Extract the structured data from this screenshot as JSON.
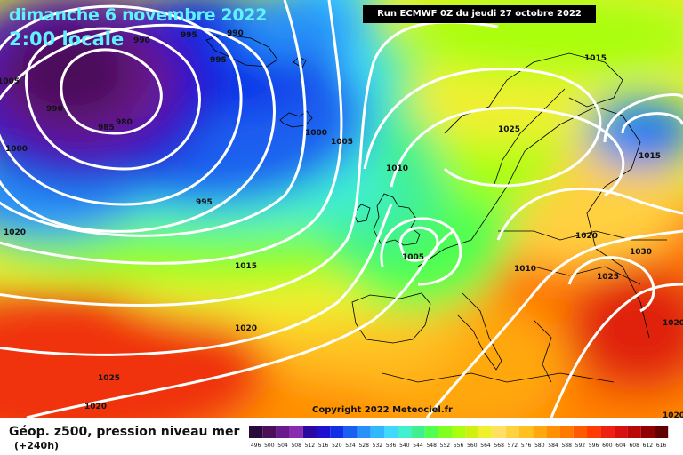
{
  "header": {
    "date_line": "dimanche 6 novembre 2022",
    "time_line": "2:00 locale",
    "run_info": "Run ECMWF 0Z du jeudi 27 octobre 2022"
  },
  "footer": {
    "copyright": "Copyright 2022 Meteociel.fr",
    "legend_title": "Géop. z500, pression niveau mer",
    "legend_subtitle": "(+240h)"
  },
  "isobar_labels": [
    "990",
    "995",
    "990",
    "995",
    "990",
    "985",
    "980",
    "1000",
    "1005",
    "1000",
    "995",
    "1020",
    "1015",
    "1010",
    "1005",
    "1015",
    "1025",
    "1015",
    "1020",
    "1010",
    "1020",
    "1025",
    "1030",
    "1020",
    "1025",
    "1020",
    "1020",
    "1005"
  ],
  "scale": {
    "values": [
      "496",
      "500",
      "504",
      "508",
      "512",
      "516",
      "520",
      "524",
      "528",
      "532",
      "536",
      "540",
      "544",
      "548",
      "552",
      "556",
      "560",
      "564",
      "568",
      "572",
      "576",
      "580",
      "584",
      "588",
      "592",
      "596",
      "600",
      "604",
      "608",
      "612",
      "616"
    ],
    "colors": [
      "#2a0a3a",
      "#4c0f5a",
      "#6a1a8a",
      "#8a2ab0",
      "#2a0aa0",
      "#2010d0",
      "#1030e8",
      "#1a60f0",
      "#2890f8",
      "#30b8ff",
      "#40d8ff",
      "#40f0d0",
      "#40f090",
      "#50ff50",
      "#80ff20",
      "#a8ff10",
      "#d0f010",
      "#f0f030",
      "#ffe060",
      "#ffd040",
      "#ffc020",
      "#ffa810",
      "#ff9000",
      "#ff7800",
      "#ff5a00",
      "#ff3c00",
      "#f02010",
      "#d81010",
      "#b80808",
      "#900000",
      "#600000"
    ]
  },
  "colors": {
    "title": "#5ef2ff",
    "isobar": "#ffffff",
    "coast": "#000000"
  }
}
